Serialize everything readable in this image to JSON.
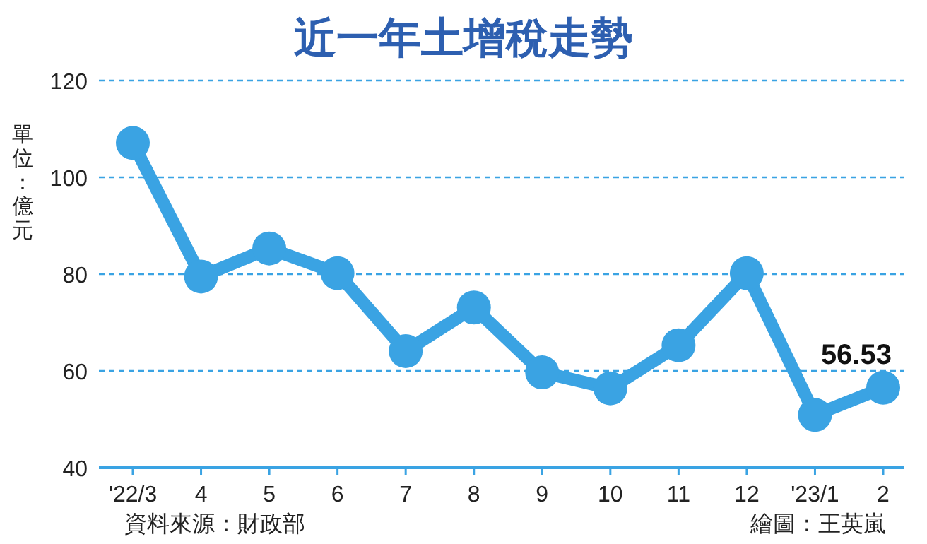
{
  "chart_data": {
    "type": "line",
    "title": "近一年土增稅走勢",
    "ylabel": "單位：億元",
    "categories": [
      "'22/3",
      "4",
      "5",
      "6",
      "7",
      "8",
      "9",
      "10",
      "11",
      "12",
      "'23/1",
      "2"
    ],
    "series": [
      {
        "color": "#3aa3e3",
        "values": [
          107.1,
          79.5,
          85.3,
          80.2,
          64.1,
          73.1,
          59.7,
          56.4,
          65.3,
          80.2,
          50.9,
          56.53
        ],
        "value_labels": [
          null,
          null,
          null,
          null,
          null,
          null,
          null,
          null,
          null,
          null,
          null,
          "56.53"
        ]
      }
    ],
    "ylim": [
      40,
      120
    ],
    "yticks": [
      40,
      60,
      80,
      100,
      120
    ],
    "grid": "y",
    "marker": "circle",
    "annotations": [
      "資料來源：財政部",
      "繪圖：王英嵐"
    ]
  }
}
